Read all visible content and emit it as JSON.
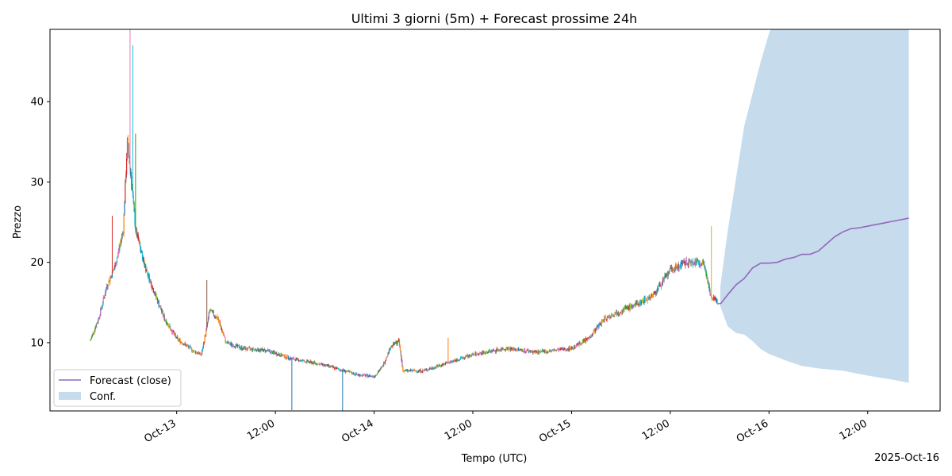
{
  "chart_data": {
    "type": "line",
    "title": "Ultimi 3 giorni (5m) + Forecast prossime 24h",
    "xlabel": "Tempo (UTC)",
    "ylabel": "Prezzo",
    "x_offset_label": "2025-Oct-16",
    "xlim": [
      "2025-10-12T08:36",
      "2025-10-16T20:48"
    ],
    "ylim": [
      1.5,
      49
    ],
    "grid": false,
    "legend_position": "lower-left",
    "x_ticks": [
      {
        "t": "2025-10-13T00:00",
        "label": "Oct-13"
      },
      {
        "t": "2025-10-13T12:00",
        "label": "12:00"
      },
      {
        "t": "2025-10-14T00:00",
        "label": "Oct-14"
      },
      {
        "t": "2025-10-14T12:00",
        "label": "12:00"
      },
      {
        "t": "2025-10-15T00:00",
        "label": "Oct-15"
      },
      {
        "t": "2025-10-15T12:00",
        "label": "12:00"
      },
      {
        "t": "2025-10-16T00:00",
        "label": "Oct-16"
      },
      {
        "t": "2025-10-16T12:00",
        "label": "12:00"
      }
    ],
    "y_ticks": [
      10,
      20,
      30,
      40
    ],
    "candles_5m": {
      "interval_minutes": 5,
      "colors": [
        "#1f77b4",
        "#ff7f0e",
        "#2ca02c",
        "#d62728",
        "#9467bd",
        "#8c564b",
        "#e377c2",
        "#7f7f7f",
        "#bcbd22",
        "#17becf"
      ],
      "close_path": [
        [
          "2025-10-12T13:30",
          10.3
        ],
        [
          "2025-10-12T14:30",
          13.0
        ],
        [
          "2025-10-12T15:30",
          17.0
        ],
        [
          "2025-10-12T16:30",
          19.5
        ],
        [
          "2025-10-12T17:30",
          24.0
        ],
        [
          "2025-10-12T18:00",
          35.0
        ],
        [
          "2025-10-12T18:30",
          30.0
        ],
        [
          "2025-10-12T19:00",
          24.0
        ],
        [
          "2025-10-12T20:00",
          20.0
        ],
        [
          "2025-10-12T21:00",
          17.0
        ],
        [
          "2025-10-12T22:30",
          13.0
        ],
        [
          "2025-10-13T00:00",
          10.5
        ],
        [
          "2025-10-13T02:00",
          9.0
        ],
        [
          "2025-10-13T03:00",
          8.5
        ],
        [
          "2025-10-13T03:40",
          12.0
        ],
        [
          "2025-10-13T04:00",
          14.0
        ],
        [
          "2025-10-13T05:00",
          13.0
        ],
        [
          "2025-10-13T06:00",
          10.0
        ],
        [
          "2025-10-13T08:00",
          9.3
        ],
        [
          "2025-10-13T11:00",
          9.0
        ],
        [
          "2025-10-13T14:00",
          8.0
        ],
        [
          "2025-10-13T18:00",
          7.2
        ],
        [
          "2025-10-13T22:00",
          6.0
        ],
        [
          "2025-10-14T00:00",
          5.8
        ],
        [
          "2025-10-14T01:00",
          7.0
        ],
        [
          "2025-10-14T02:00",
          9.5
        ],
        [
          "2025-10-14T03:00",
          10.2
        ],
        [
          "2025-10-14T03:30",
          6.5
        ],
        [
          "2025-10-14T06:00",
          6.5
        ],
        [
          "2025-10-14T09:00",
          7.5
        ],
        [
          "2025-10-14T12:00",
          8.5
        ],
        [
          "2025-10-14T16:00",
          9.3
        ],
        [
          "2025-10-14T20:00",
          8.8
        ],
        [
          "2025-10-15T00:00",
          9.3
        ],
        [
          "2025-10-15T02:00",
          10.5
        ],
        [
          "2025-10-15T04:00",
          13.0
        ],
        [
          "2025-10-15T06:00",
          14.0
        ],
        [
          "2025-10-15T08:00",
          14.8
        ],
        [
          "2025-10-15T10:00",
          16.0
        ],
        [
          "2025-10-15T12:00",
          19.0
        ],
        [
          "2025-10-15T14:00",
          20.0
        ],
        [
          "2025-10-15T16:00",
          20.0
        ],
        [
          "2025-10-15T16:30",
          18.0
        ],
        [
          "2025-10-15T17:00",
          15.5
        ],
        [
          "2025-10-15T18:00",
          15.0
        ]
      ],
      "spikes": [
        {
          "t": "2025-10-12T16:10",
          "high": 25.8
        },
        {
          "t": "2025-10-12T18:20",
          "high": 49.0
        },
        {
          "t": "2025-10-12T18:40",
          "high": 47.0
        },
        {
          "t": "2025-10-12T19:00",
          "high": 36.0
        },
        {
          "t": "2025-10-13T03:40",
          "high": 17.8
        },
        {
          "t": "2025-10-15T17:00",
          "high": 24.5
        },
        {
          "t": "2025-10-14T09:00",
          "high": 10.6
        }
      ],
      "wicks_down": [
        {
          "t": "2025-10-13T14:00",
          "low": 1.6
        },
        {
          "t": "2025-10-13T20:10",
          "low": 1.5
        }
      ]
    },
    "series": [
      {
        "name": "Forecast (close)",
        "color": "#9467bd",
        "points": [
          [
            "2025-10-15T18:05",
            14.8
          ],
          [
            "2025-10-15T19:00",
            16.0
          ],
          [
            "2025-10-15T20:00",
            17.2
          ],
          [
            "2025-10-15T21:00",
            18.0
          ],
          [
            "2025-10-15T22:00",
            19.3
          ],
          [
            "2025-10-15T23:00",
            19.9
          ],
          [
            "2025-10-16T00:00",
            19.9
          ],
          [
            "2025-10-16T01:00",
            20.0
          ],
          [
            "2025-10-16T02:00",
            20.4
          ],
          [
            "2025-10-16T03:00",
            20.6
          ],
          [
            "2025-10-16T04:00",
            21.0
          ],
          [
            "2025-10-16T05:00",
            21.0
          ],
          [
            "2025-10-16T06:00",
            21.4
          ],
          [
            "2025-10-16T07:00",
            22.3
          ],
          [
            "2025-10-16T08:00",
            23.2
          ],
          [
            "2025-10-16T09:00",
            23.8
          ],
          [
            "2025-10-16T10:00",
            24.2
          ],
          [
            "2025-10-16T11:00",
            24.3
          ],
          [
            "2025-10-16T12:00",
            24.5
          ],
          [
            "2025-10-16T13:00",
            24.7
          ],
          [
            "2025-10-16T14:00",
            24.9
          ],
          [
            "2025-10-16T15:00",
            25.1
          ],
          [
            "2025-10-16T16:00",
            25.3
          ],
          [
            "2025-10-16T17:00",
            25.5
          ]
        ]
      }
    ],
    "confidence_band": {
      "name": "Conf.",
      "color": "#c6dbec",
      "upper": [
        [
          "2025-10-15T18:05",
          17.0
        ],
        [
          "2025-10-15T19:00",
          24.0
        ],
        [
          "2025-10-15T20:00",
          30.5
        ],
        [
          "2025-10-15T21:00",
          37.0
        ],
        [
          "2025-10-15T22:00",
          41.0
        ],
        [
          "2025-10-15T23:00",
          45.0
        ],
        [
          "2025-10-16T00:00",
          48.5
        ],
        [
          "2025-10-16T00:15",
          49.0
        ],
        [
          "2025-10-16T17:00",
          49.0
        ]
      ],
      "lower": [
        [
          "2025-10-15T18:05",
          14.5
        ],
        [
          "2025-10-15T19:00",
          12.0
        ],
        [
          "2025-10-15T20:00",
          11.2
        ],
        [
          "2025-10-15T21:00",
          11.0
        ],
        [
          "2025-10-15T22:00",
          10.2
        ],
        [
          "2025-10-15T23:00",
          9.2
        ],
        [
          "2025-10-16T00:00",
          8.6
        ],
        [
          "2025-10-16T02:00",
          7.8
        ],
        [
          "2025-10-16T04:00",
          7.1
        ],
        [
          "2025-10-16T06:00",
          6.8
        ],
        [
          "2025-10-16T09:00",
          6.5
        ],
        [
          "2025-10-16T12:00",
          5.9
        ],
        [
          "2025-10-16T15:00",
          5.4
        ],
        [
          "2025-10-16T17:00",
          5.0
        ]
      ]
    }
  }
}
